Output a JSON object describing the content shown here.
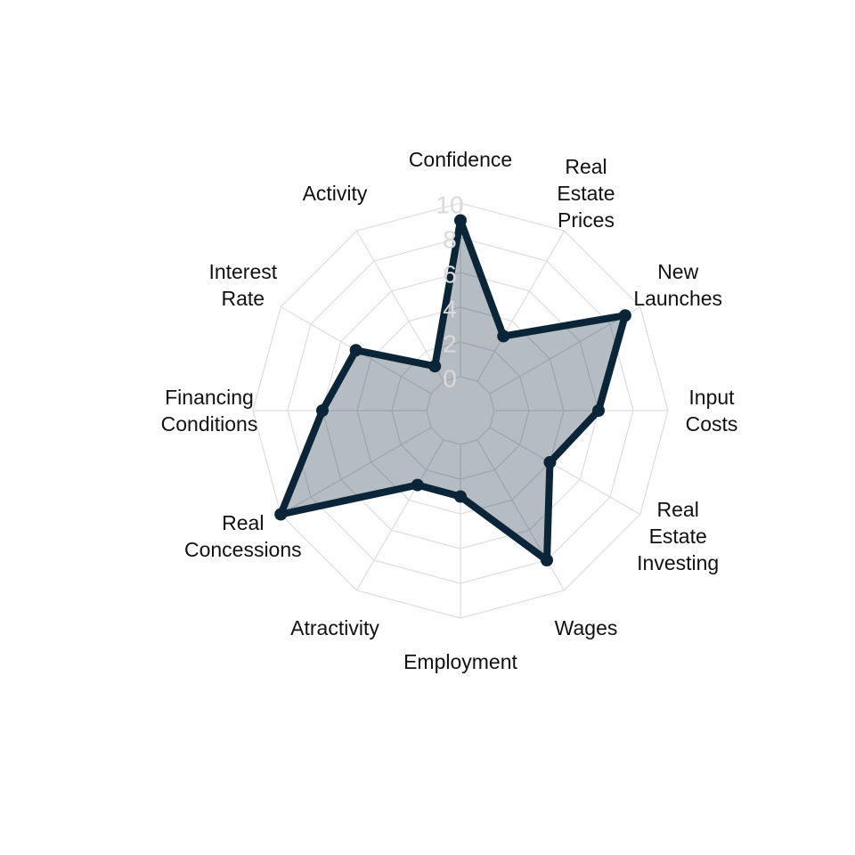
{
  "chart_data": {
    "type": "radar",
    "categories": [
      "Confidence",
      "Real Estate Prices",
      "New Launches",
      "Input Costs",
      "Real Estate Investing",
      "Wages",
      "Employment",
      "Atractivity",
      "Real Concessions",
      "Financing Conditions",
      "Interest Rate",
      "Activity"
    ],
    "category_label_lines": [
      [
        "Confidence"
      ],
      [
        "Real",
        "Estate",
        "Prices"
      ],
      [
        "New",
        "Launches"
      ],
      [
        "Input",
        "Costs"
      ],
      [
        "Real",
        "Estate",
        "Investing"
      ],
      [
        "Wages"
      ],
      [
        "Employment"
      ],
      [
        "Atractivity"
      ],
      [
        "Real",
        "Concessions"
      ],
      [
        "Financing",
        "Conditions"
      ],
      [
        "Interest",
        "Rate"
      ],
      [
        "Activity"
      ]
    ],
    "series": [
      {
        "values": [
          9,
          3,
          9,
          6,
          4,
          8,
          3,
          3,
          10,
          6,
          5,
          1
        ]
      }
    ],
    "radial_ticks": [
      "0",
      "2",
      "4",
      "6",
      "8",
      "10"
    ],
    "rlim": [
      0,
      10
    ],
    "grid": true,
    "colors": {
      "line": "#0b2538",
      "fill": "#0b2538",
      "fill_opacity": 0.3,
      "grid": "#dddddd"
    }
  }
}
